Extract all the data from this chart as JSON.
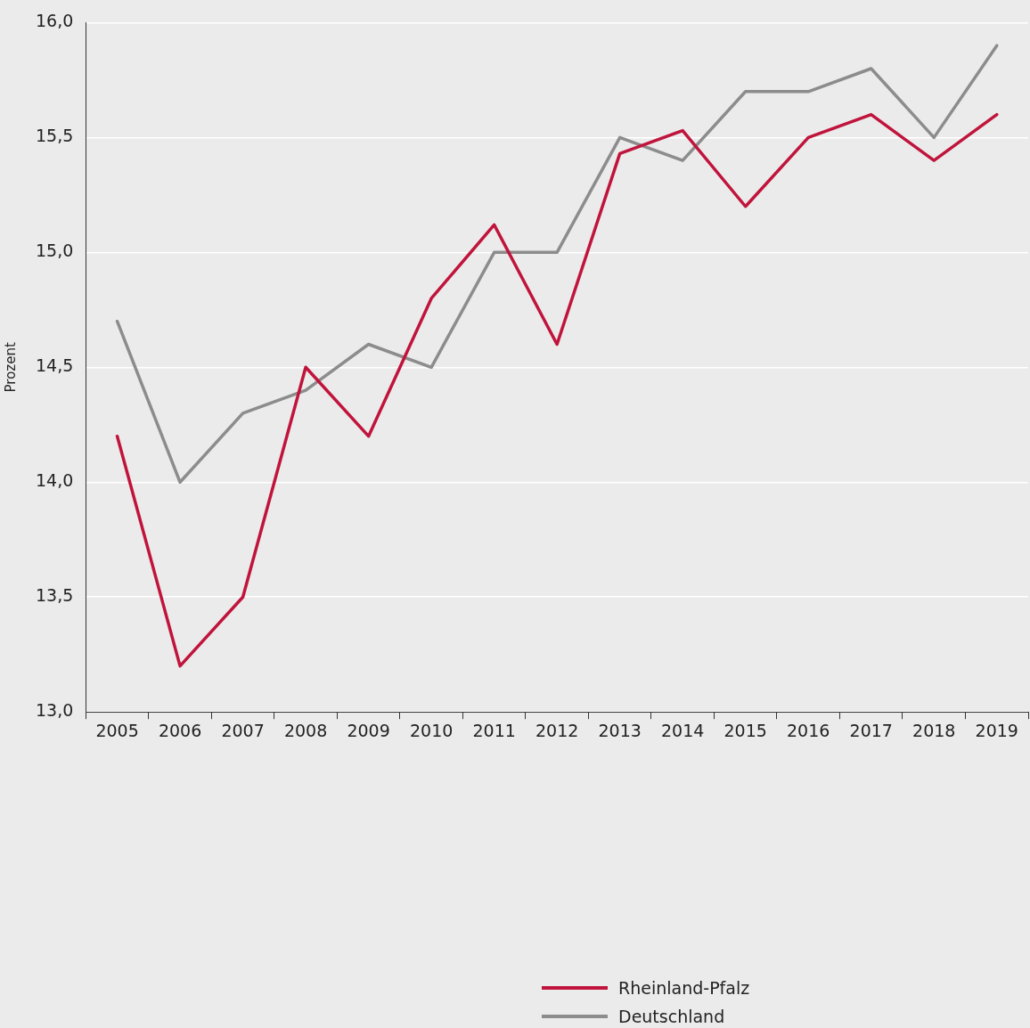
{
  "chart_data": {
    "type": "line",
    "ylabel": "Prozent",
    "categories": [
      "2005",
      "2006",
      "2007",
      "2008",
      "2009",
      "2010",
      "2011",
      "2012",
      "2013",
      "2014",
      "2015",
      "2016",
      "2017",
      "2018",
      "2019"
    ],
    "series": [
      {
        "name": "Rheinland-Pfalz",
        "color": "#c0143c",
        "values": [
          14.2,
          13.2,
          13.5,
          14.5,
          14.2,
          14.8,
          15.12,
          14.6,
          15.43,
          15.53,
          15.2,
          15.5,
          15.6,
          15.4,
          15.6
        ]
      },
      {
        "name": "Deutschland",
        "color": "#8c8c8c",
        "values": [
          14.7,
          14.0,
          14.3,
          14.4,
          14.6,
          14.5,
          15.0,
          15.0,
          15.5,
          15.4,
          15.7,
          15.7,
          15.8,
          15.5,
          15.9
        ]
      }
    ],
    "ylim": [
      13,
      16
    ],
    "yticks": [
      {
        "value": 13,
        "label": "13,0"
      },
      {
        "value": 13.5,
        "label": "13,5"
      },
      {
        "value": 14,
        "label": "14,0"
      },
      {
        "value": 14.5,
        "label": "14,5"
      },
      {
        "value": 15,
        "label": "15,0"
      },
      {
        "value": 15.5,
        "label": "15,5"
      },
      {
        "value": 16,
        "label": "16,0"
      }
    ],
    "grid": "y",
    "legend": "bottom",
    "marker": "none",
    "line_style": "solid"
  }
}
